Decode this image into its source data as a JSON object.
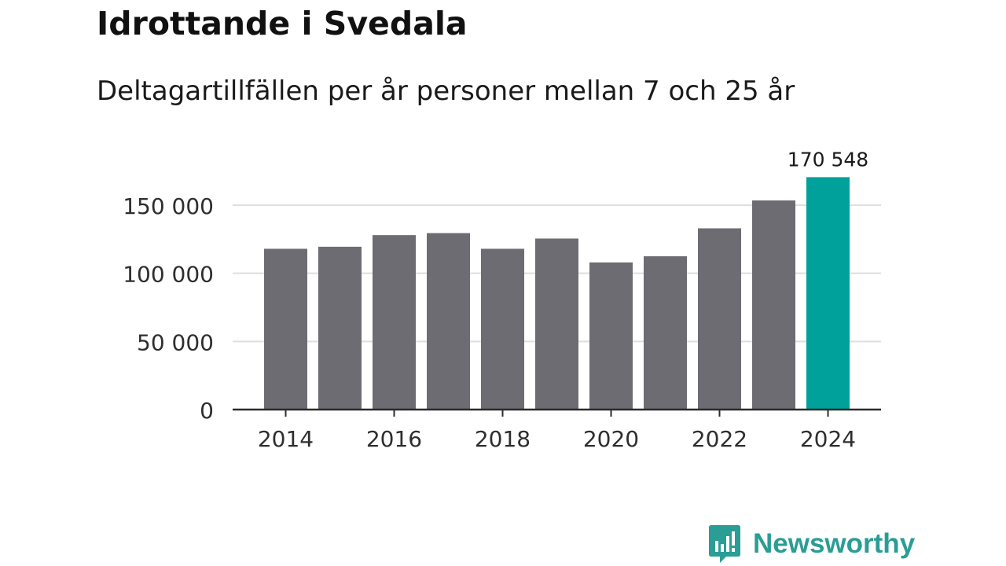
{
  "title": "Idrottande i Svedala",
  "subtitle": "Deltagartillfällen per år personer mellan 7 och 25 år",
  "brand": {
    "name": "Newsworthy",
    "icon": "bar-chart-speech-bubble-icon"
  },
  "colors": {
    "bar": "#6d6c72",
    "highlight": "#00a19a",
    "grid": "#dedede",
    "axis": "#2b2b2b",
    "brand": "#2a9d95"
  },
  "chart_data": {
    "type": "bar",
    "title": "Idrottande i Svedala",
    "subtitle": "Deltagartillfällen per år personer mellan 7 och 25 år",
    "xlabel": "",
    "ylabel": "",
    "categories": [
      "2014",
      "2015",
      "2016",
      "2017",
      "2018",
      "2019",
      "2020",
      "2021",
      "2022",
      "2023",
      "2024"
    ],
    "values": [
      118000,
      119500,
      128000,
      129500,
      118000,
      125500,
      108000,
      112500,
      133000,
      153500,
      170548
    ],
    "ylim": [
      0,
      175000
    ],
    "yticks": [
      0,
      50000,
      100000,
      150000
    ],
    "ytick_labels": [
      "0",
      "50 000",
      "100 000",
      "150 000"
    ],
    "xtick_labels": [
      "2014",
      "2016",
      "2018",
      "2020",
      "2022",
      "2024"
    ],
    "highlight_index": 10,
    "highlight_label": "170 548",
    "grid": true
  }
}
